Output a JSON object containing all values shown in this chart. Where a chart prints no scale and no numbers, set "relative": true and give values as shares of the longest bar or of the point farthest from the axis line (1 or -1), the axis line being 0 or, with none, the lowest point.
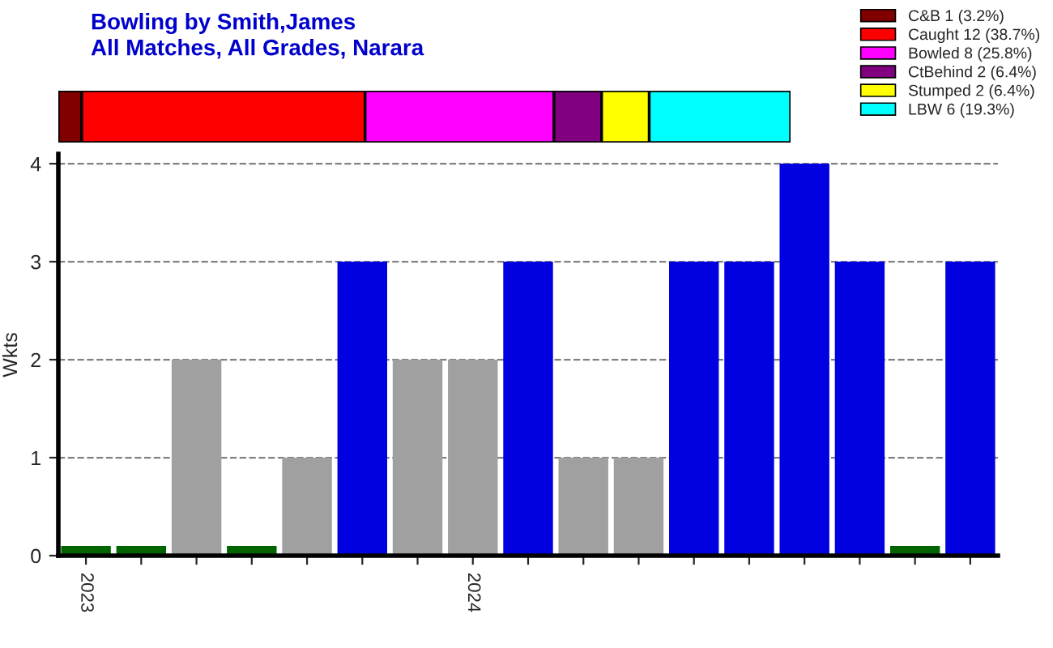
{
  "chart_data": [
    {
      "type": "bar",
      "title": "Bowling by Smith,James\nAll Matches, All Grades, Narara",
      "orientation": "horizontal",
      "stacked": true,
      "relative": true,
      "legend": "top right",
      "categories": [
        null
      ],
      "series": [
        {
          "name": "C&B 1 (3.2%)",
          "color": "#800000",
          "values": [
            0.032
          ]
        },
        {
          "name": "Caught 12 (38.7%)",
          "color": "#ff0000",
          "values": [
            0.387
          ]
        },
        {
          "name": "Bowled 8 (25.8%)",
          "color": "#ff00ff",
          "values": [
            0.258
          ]
        },
        {
          "name": "CtBehind 2 (6.4%)",
          "color": "#800080",
          "values": [
            0.065
          ]
        },
        {
          "name": "Stumped 2 (6.4%)",
          "color": "#ffff00",
          "values": [
            0.065
          ]
        },
        {
          "name": "LBW 6 (19.3%)",
          "color": "#00ffff",
          "values": [
            0.193
          ]
        }
      ]
    },
    {
      "type": "bar",
      "ylabel": "Wkts",
      "ylim": [
        0,
        4.1
      ],
      "yticks": [
        0,
        1,
        2,
        3,
        4
      ],
      "grid": "y",
      "categories": [
        "2023",
        null,
        null,
        null,
        null,
        null,
        null,
        "2024",
        null,
        null,
        null,
        null,
        null,
        null,
        null,
        null,
        null
      ],
      "values": [
        0.1,
        0.1,
        2,
        0.1,
        1,
        3,
        2,
        2,
        3,
        1,
        1,
        3,
        3,
        4,
        3,
        0.1,
        3
      ],
      "colors": [
        "#006400",
        "#006400",
        "#a0a0a0",
        "#006400",
        "#a0a0a0",
        "#0000e0",
        "#a0a0a0",
        "#a0a0a0",
        "#0000e0",
        "#a0a0a0",
        "#a0a0a0",
        "#0000e0",
        "#0000e0",
        "#0000e0",
        "#0000e0",
        "#006400",
        "#0000e0"
      ]
    }
  ]
}
